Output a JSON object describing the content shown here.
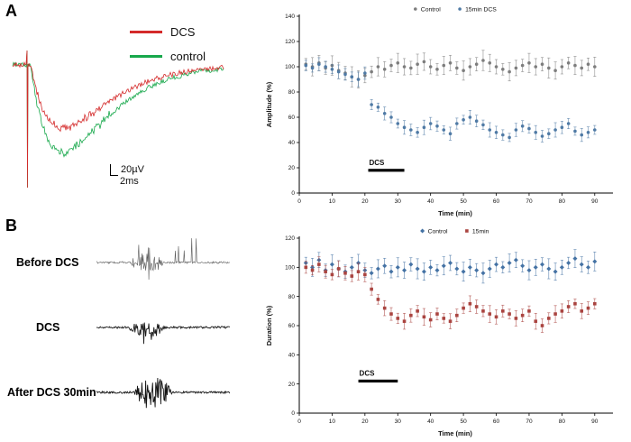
{
  "panels": {
    "a_label": "A",
    "b_label": "B"
  },
  "panelA_left": {
    "legend": [
      {
        "label": "DCS",
        "color": "#d42a2a"
      },
      {
        "label": "control",
        "color": "#17a84b"
      }
    ],
    "scale_v": "20µV",
    "scale_h": "2ms"
  },
  "epsp": {
    "noise": 2.8,
    "traces": [
      {
        "name": "control-trace",
        "color": "#17a84b",
        "depth": 96,
        "seed": 3
      },
      {
        "name": "dcs-trace",
        "color": "#d42a2a",
        "depth": 70,
        "seed": 5
      }
    ]
  },
  "panelB_left": {
    "labels": [
      "Before DCS",
      "DCS",
      "After DCS 30min"
    ],
    "traces": [
      {
        "seed": 7,
        "amp": 15,
        "b0": 40,
        "len": 36,
        "color": "#5a5a5a",
        "width": 0.6,
        "post": true,
        "bias": 0
      },
      {
        "seed": 11,
        "amp": 11,
        "b0": 38,
        "len": 40,
        "color": "#1a1a1a",
        "width": 0.9,
        "post": false,
        "bias": 1
      },
      {
        "seed": 23,
        "amp": 17,
        "b0": 44,
        "len": 42,
        "color": "#141414",
        "width": 0.9,
        "post": false,
        "bias": 0
      }
    ]
  },
  "chart_data": [
    {
      "type": "scatter",
      "title": "",
      "xlabel": "Time (min)",
      "ylabel": "Amplitude (%)",
      "xlim": [
        0,
        95
      ],
      "ylim": [
        0,
        140
      ],
      "xtick": 10,
      "ytick": 20,
      "grid": false,
      "legend_position": "top",
      "x": [
        2,
        4,
        6,
        8,
        10,
        12,
        14,
        16,
        18,
        20,
        22,
        24,
        26,
        28,
        30,
        32,
        34,
        36,
        38,
        40,
        42,
        44,
        46,
        48,
        50,
        52,
        54,
        56,
        58,
        60,
        62,
        64,
        66,
        68,
        70,
        72,
        74,
        76,
        78,
        80,
        82,
        84,
        86,
        88,
        90
      ],
      "series": [
        {
          "name": "Control",
          "marker": "circle",
          "color": "#7d7d7d",
          "error": 7,
          "values": [
            102,
            100,
            103,
            99,
            101,
            97,
            95,
            92,
            90,
            93,
            96,
            100,
            98,
            101,
            103,
            100,
            99,
            102,
            104,
            100,
            98,
            101,
            103,
            99,
            97,
            100,
            102,
            105,
            103,
            100,
            98,
            96,
            99,
            101,
            103,
            100,
            102,
            99,
            97,
            100,
            103,
            101,
            99,
            102,
            100
          ]
        },
        {
          "name": "15min DCS",
          "marker": "circle",
          "color": "#4f7aa5",
          "error": 5,
          "values": [
            101,
            99,
            102,
            100,
            98,
            96,
            94,
            92,
            90,
            95,
            70,
            68,
            63,
            60,
            55,
            52,
            50,
            48,
            52,
            55,
            53,
            50,
            47,
            55,
            58,
            60,
            57,
            54,
            50,
            48,
            46,
            44,
            50,
            53,
            51,
            48,
            45,
            47,
            50,
            52,
            55,
            49,
            46,
            48,
            50
          ]
        }
      ],
      "annotation": {
        "label": "DCS",
        "x1": 21,
        "x2": 32,
        "y": 18
      }
    },
    {
      "type": "scatter",
      "title": "",
      "xlabel": "Time (min)",
      "ylabel": "Duration (%)",
      "xlim": [
        0,
        95
      ],
      "ylim": [
        0,
        120
      ],
      "xtick": 10,
      "ytick": 20,
      "grid": false,
      "legend_position": "top",
      "x": [
        2,
        4,
        6,
        8,
        10,
        12,
        14,
        16,
        18,
        20,
        22,
        24,
        26,
        28,
        30,
        32,
        34,
        36,
        38,
        40,
        42,
        44,
        46,
        48,
        50,
        52,
        54,
        56,
        58,
        60,
        62,
        64,
        66,
        68,
        70,
        72,
        74,
        76,
        78,
        80,
        82,
        84,
        86,
        88,
        90
      ],
      "series": [
        {
          "name": "Control",
          "marker": "diamond",
          "color": "#4472a4",
          "error": 6,
          "values": [
            103,
            100,
            105,
            98,
            102,
            99,
            97,
            100,
            103,
            98,
            96,
            99,
            101,
            97,
            100,
            98,
            102,
            99,
            97,
            100,
            98,
            101,
            103,
            99,
            97,
            100,
            98,
            96,
            99,
            102,
            100,
            103,
            105,
            101,
            98,
            100,
            102,
            99,
            97,
            100,
            103,
            106,
            102,
            100,
            104
          ]
        },
        {
          "name": "15min",
          "marker": "square",
          "color": "#aa4440",
          "error": 5,
          "values": [
            100,
            98,
            102,
            97,
            95,
            99,
            96,
            94,
            97,
            95,
            85,
            78,
            72,
            68,
            65,
            63,
            67,
            70,
            66,
            64,
            68,
            65,
            63,
            67,
            72,
            75,
            73,
            70,
            68,
            66,
            70,
            68,
            65,
            67,
            70,
            63,
            60,
            65,
            68,
            70,
            73,
            75,
            70,
            72,
            75
          ]
        }
      ],
      "annotation": {
        "label": "DCS",
        "x1": 18,
        "x2": 30,
        "y": 22
      }
    }
  ]
}
